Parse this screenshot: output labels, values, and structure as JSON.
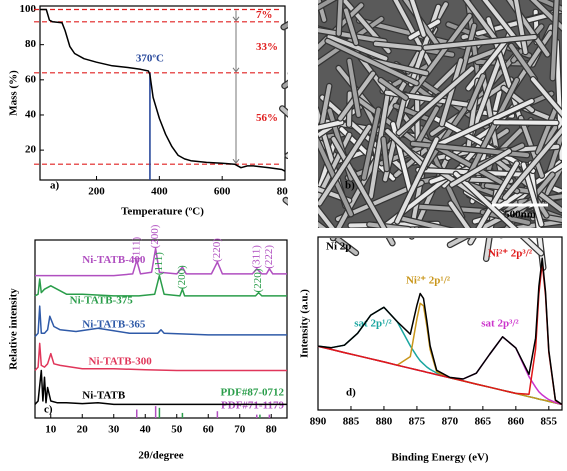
{
  "chart_data": [
    {
      "type": "line",
      "panel_label": "a)",
      "x_label": "Temperature (ºC)",
      "y_label": "Mass (%)",
      "xlim": [
        20,
        800
      ],
      "xticks": [
        200,
        400,
        600,
        800
      ],
      "ylim": [
        3,
        102
      ],
      "yticks": [
        20,
        40,
        60,
        80,
        100
      ],
      "series": [
        {
          "color": "#000000",
          "x": [
            20,
            40,
            50,
            60,
            90,
            100,
            115,
            130,
            160,
            200,
            250,
            300,
            340,
            365,
            370,
            380,
            400,
            420,
            440,
            460,
            480,
            500,
            550,
            600,
            640,
            660,
            680,
            700,
            750,
            790,
            800
          ],
          "values": [
            100,
            100,
            94,
            93,
            92.5,
            88,
            79,
            75,
            72,
            70,
            68,
            67,
            66,
            65,
            63,
            50,
            38,
            29,
            22,
            17,
            15,
            14,
            13,
            12.5,
            12,
            10,
            11,
            11,
            10,
            9,
            8
          ]
        }
      ],
      "marker_line": {
        "x": 370,
        "y": 64,
        "label": "370ºC",
        "color": "#2a4a9c"
      },
      "reference_lines": {
        "values": [
          100,
          93,
          64,
          12
        ],
        "color": "#e02020"
      },
      "mass_loss": [
        7,
        33,
        56
      ],
      "mass_loss_labels": [
        "7%",
        "33%",
        "56%"
      ]
    },
    {
      "type": "image",
      "panel_label": "b)",
      "scale_bar": "500nm"
    },
    {
      "type": "line",
      "panel_label": "c)",
      "x_label": "2θ/degree",
      "y_label": "Relative intensity",
      "xlim": [
        5,
        85
      ],
      "xticks": [
        10,
        20,
        30,
        40,
        50,
        60,
        70,
        80
      ],
      "ylim": [
        0,
        105
      ],
      "series": [
        {
          "name": "Ni-TATB-400",
          "color": "#b04fc0",
          "x": [
            5,
            10,
            20,
            30,
            36,
            37.3,
            38.5,
            42,
            43.3,
            44.5,
            50,
            51.8,
            53,
            61,
            62.9,
            64.5,
            70,
            74,
            75.4,
            77,
            78.5,
            79.4,
            80.5,
            85
          ],
          "values": [
            84,
            84,
            84,
            84,
            85,
            93,
            85,
            86,
            100,
            86,
            85,
            89,
            85,
            85,
            92,
            85,
            85,
            85,
            88,
            85,
            85,
            88,
            85,
            85
          ],
          "peak_labels": [
            {
              "text": "(111)",
              "x": 37.3
            },
            {
              "text": "(200)",
              "x": 43.3
            },
            {
              "text": "(220)",
              "x": 62.9
            },
            {
              "text": "(311)",
              "x": 75.4
            },
            {
              "text": "(222)",
              "x": 79.4
            }
          ]
        },
        {
          "name": "Ni-TATB-375",
          "color": "#2a9d4a",
          "x": [
            5,
            6,
            6.5,
            7,
            8,
            10,
            15,
            20,
            30,
            38,
            43,
            44.5,
            46,
            51,
            51.8,
            52.5,
            60,
            70,
            75,
            76,
            77,
            80,
            85
          ],
          "values": [
            72,
            73,
            82,
            74,
            76,
            78,
            73,
            73,
            72,
            72,
            73,
            84,
            73,
            72,
            76,
            72,
            72,
            72,
            72,
            74,
            72,
            72,
            72
          ],
          "peak_labels": [
            {
              "text": "(111)",
              "x": 44.5
            },
            {
              "text": "(200)",
              "x": 51.8
            },
            {
              "text": "(220)",
              "x": 76
            }
          ]
        },
        {
          "name": "Ni-TATB-365",
          "color": "#2f5aa8",
          "x": [
            5,
            6,
            6.5,
            7,
            8,
            9,
            9.7,
            11,
            13,
            18,
            25,
            35,
            44,
            45,
            46,
            60,
            70,
            80,
            85
          ],
          "values": [
            48,
            50,
            66,
            50,
            50,
            52,
            60,
            54,
            52,
            51,
            53,
            50,
            50,
            52,
            50,
            49,
            49,
            49,
            49
          ]
        },
        {
          "name": "Ni-TATB-300",
          "color": "#e0365a",
          "x": [
            5,
            6,
            6.5,
            7,
            8,
            9,
            10,
            11,
            13,
            20,
            30,
            40,
            50,
            60,
            70,
            80,
            85
          ],
          "values": [
            28,
            30,
            44,
            31,
            30,
            32,
            38,
            32,
            31,
            29,
            29,
            28.5,
            28,
            28,
            28,
            28,
            28
          ]
        },
        {
          "name": "Ni-TATB",
          "color": "#000000",
          "x": [
            5,
            6,
            7,
            7.5,
            8,
            8.5,
            9,
            10,
            12,
            15,
            20,
            25,
            30,
            40,
            50,
            60,
            70,
            80,
            85
          ],
          "values": [
            8,
            10,
            28,
            10,
            24,
            9,
            18,
            10,
            9,
            9,
            8.5,
            9,
            8,
            8,
            8,
            8,
            8,
            8,
            8
          ]
        }
      ],
      "references": [
        {
          "name": "PDF#87-0712",
          "color": "#2a9d4a",
          "x": [
            44.5,
            51.8,
            76.4
          ],
          "values": [
            6,
            3,
            2
          ]
        },
        {
          "name": "PDF#71-1179",
          "color": "#b04fc0",
          "x": [
            37.3,
            43.3,
            62.9,
            75.4,
            79.4
          ],
          "values": [
            5,
            7,
            4,
            2,
            2
          ]
        }
      ]
    },
    {
      "type": "line",
      "panel_label": "d)",
      "title": "Ni 2p",
      "x_label": "Binding Energy (eV)",
      "y_label": "Intensity (a.u.)",
      "xlim": [
        890,
        853
      ],
      "xticks": [
        890,
        885,
        880,
        875,
        870,
        865,
        860,
        855
      ],
      "ylim": [
        0,
        95
      ],
      "x": [
        890,
        888,
        886,
        884,
        882,
        880,
        878,
        876,
        875,
        874.5,
        874,
        873.5,
        873,
        872,
        870,
        868,
        866,
        864,
        862,
        860,
        858,
        857,
        856.5,
        856,
        855.5,
        855,
        854,
        853
      ],
      "series": [
        {
          "color": "#20b2aa",
          "values": [
            35.0,
            33.3,
            31.5,
            29.8,
            28.1,
            26.4,
            24.6,
            22.9,
            22.0,
            21.6,
            21.2,
            20.7,
            20.3,
            19.4,
            17.7,
            16.0,
            14.2,
            12.5,
            10.8,
            9.1,
            7.3,
            6.5,
            6.0,
            5.6,
            5.2,
            4.7,
            3.9,
            3.0
          ]
        },
        {
          "color": "#1aa6a0",
          "label": "sat 2p¹/²",
          "values": [
            35.1,
            34.2,
            35.6,
            42.1,
            52.1,
            56.4,
            48.6,
            35.2,
            29.5,
            27.0,
            25.3,
            23.6,
            22.3,
            20.3,
            17.8,
            16.0,
            14.2,
            12.5,
            10.8,
            9.1,
            7.3,
            6.5,
            6.0,
            5.6,
            5.2,
            4.7,
            3.9,
            3.0
          ]
        },
        {
          "color": "#c9961a",
          "label": "Ni²⁺ 2p¹/²",
          "values": [
            35.0,
            33.3,
            31.5,
            29.8,
            28.1,
            26.4,
            24.6,
            29.3,
            50.0,
            58.6,
            57.2,
            46.2,
            33.3,
            20.9,
            17.7,
            16.0,
            14.2,
            12.5,
            10.8,
            9.1,
            7.3,
            6.5,
            6.0,
            5.6,
            5.2,
            4.7,
            3.9,
            3.0
          ]
        },
        {
          "color": "#cc33cc",
          "label": "sat 2p³/²",
          "values": [
            35.0,
            33.3,
            31.5,
            29.8,
            28.1,
            26.4,
            24.6,
            22.9,
            22.0,
            21.6,
            21.2,
            20.7,
            20.3,
            19.4,
            17.8,
            17.0,
            20.2,
            30.5,
            40.2,
            34.1,
            18.3,
            12.5,
            10.0,
            8.3,
            6.9,
            5.7,
            4.2,
            3.0
          ]
        },
        {
          "color": "#e01818",
          "label": "Ni²⁺ 2p³/²",
          "values": [
            35.0,
            33.3,
            31.5,
            29.8,
            28.1,
            26.4,
            24.6,
            22.9,
            22.0,
            21.6,
            21.2,
            20.7,
            20.3,
            19.4,
            17.7,
            16.0,
            14.2,
            12.5,
            10.8,
            9.1,
            8.6,
            33.5,
            64.0,
            80.6,
            63.2,
            31.7,
            5.2,
            3.0
          ]
        },
        {
          "color": "#000000",
          "values": [
            35.1,
            34.2,
            35.6,
            42.1,
            52.1,
            56.4,
            48.6,
            41.6,
            57.5,
            64.0,
            61.3,
            49.1,
            35.3,
            21.8,
            17.9,
            17.0,
            20.2,
            30.5,
            40.2,
            34.1,
            19.6,
            39.5,
            68.0,
            83.3,
            64.9,
            32.7,
            5.5,
            3.0
          ]
        }
      ]
    }
  ]
}
